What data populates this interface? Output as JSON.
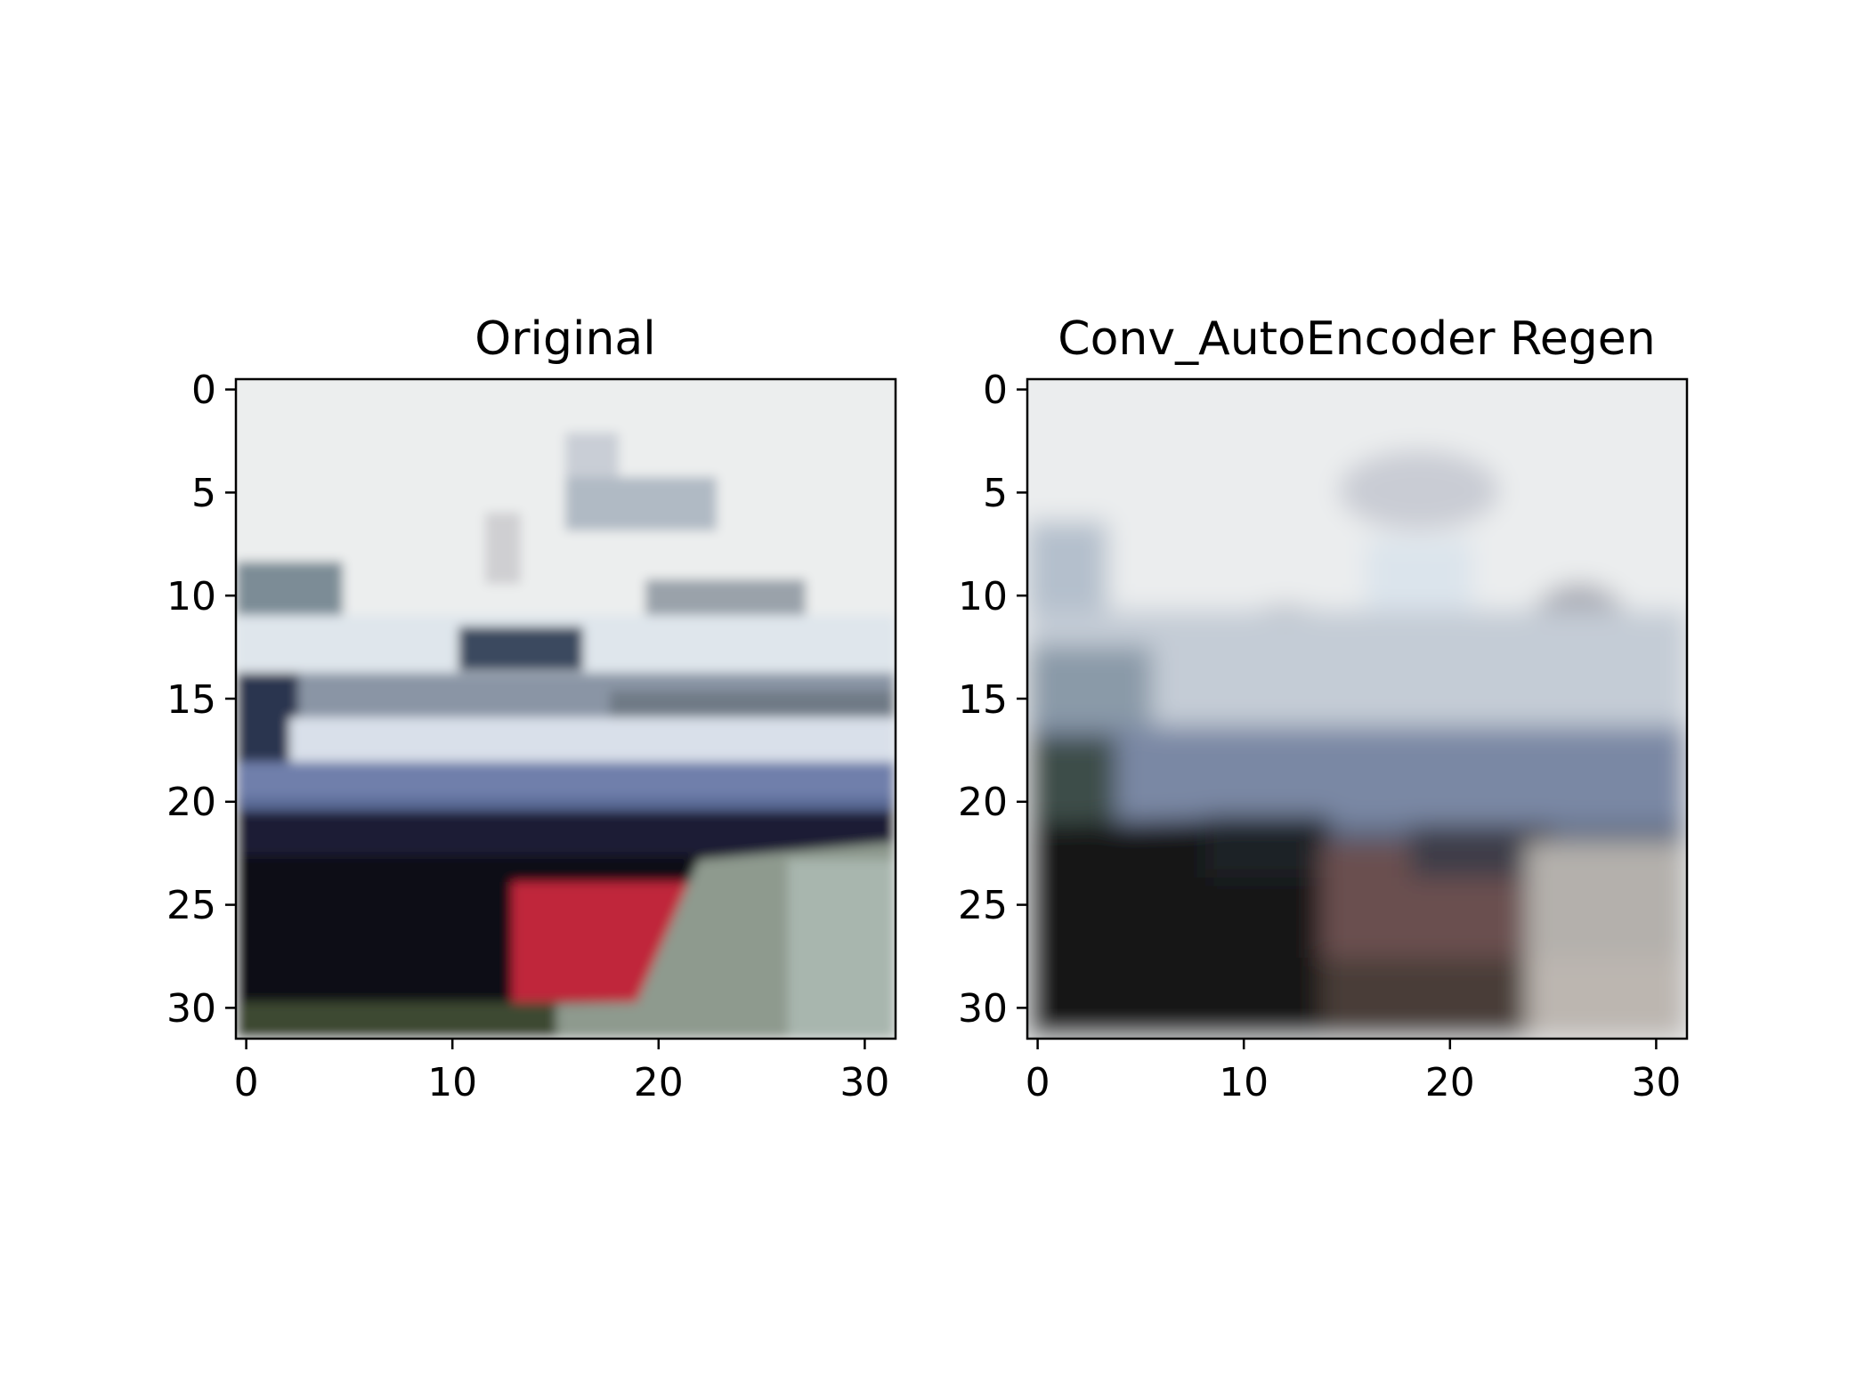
{
  "figure": {
    "panels": [
      {
        "title": "Original",
        "x_ticks": [
          "0",
          "10",
          "20",
          "30"
        ],
        "y_ticks": [
          "0",
          "5",
          "10",
          "15",
          "20",
          "25",
          "30"
        ],
        "image_size": [
          32,
          32
        ],
        "colors": {
          "sky": "#eceeee",
          "deck_white": "#dfe6ec",
          "windows": "#3a4a5e",
          "hull_blue": "#5a6a96",
          "hull_dark": "#0c0a12",
          "hull_red": "#c0283a",
          "water": "#8e9a8e"
        }
      },
      {
        "title": "Conv_AutoEncoder Regen",
        "x_ticks": [
          "0",
          "10",
          "20",
          "30"
        ],
        "y_ticks": [
          "0",
          "5",
          "10",
          "15",
          "20",
          "25",
          "30"
        ],
        "image_size": [
          32,
          32
        ],
        "colors": {
          "sky": "#ebedee",
          "ship_light": "#c4ccd6",
          "hull_blue": "#7a88a4",
          "hull_dark": "#141212",
          "hull_brown": "#6a5050",
          "water": "#b4b0ac"
        }
      }
    ]
  }
}
